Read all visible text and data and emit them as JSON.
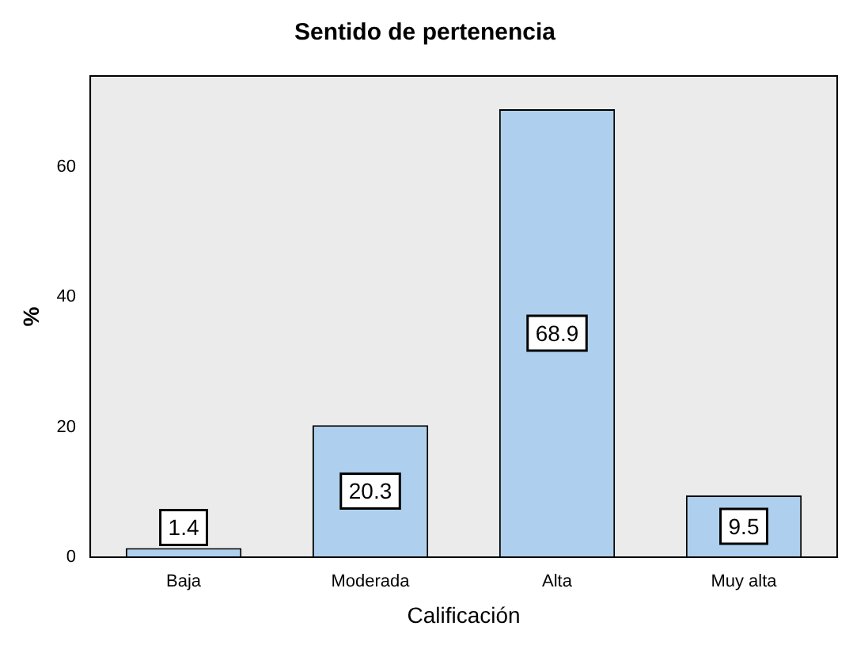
{
  "chart_data": {
    "type": "bar",
    "title": "Sentido de pertenencia",
    "xlabel": "Calificación",
    "ylabel": "%",
    "categories": [
      "Baja",
      "Moderada",
      "Alta",
      "Muy alta"
    ],
    "values": [
      1.4,
      20.3,
      68.9,
      9.5
    ],
    "color": "#aed0ee",
    "ylim": [
      0,
      74
    ],
    "yticks": [
      0,
      20,
      40,
      60
    ],
    "grid": false,
    "data_labels": true
  }
}
